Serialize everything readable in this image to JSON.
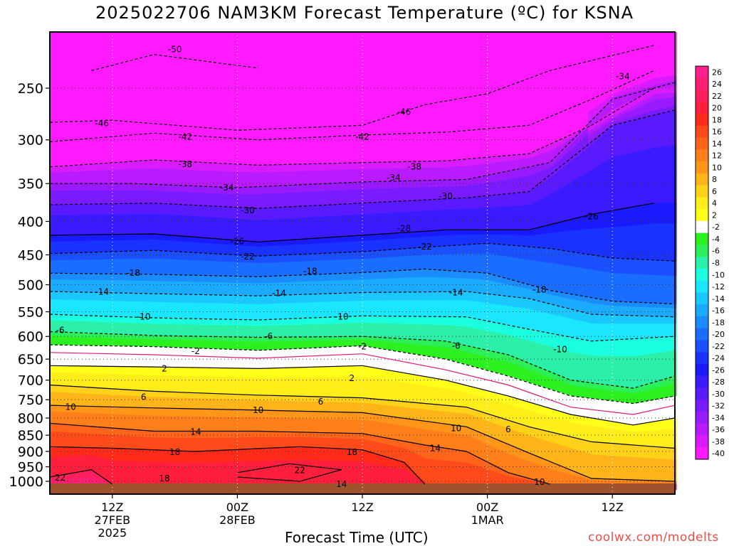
{
  "title": "2025022706 NAM3KM Forecast Temperature (ºC) for KSNA",
  "xlabel": "Forecast Time (UTC)",
  "credit": "coolwx.com/modelts",
  "chart_data": {
    "type": "heatmap",
    "title": "2025022706 NAM3KM Forecast Temperature (ºC) for KSNA",
    "xlabel": "Forecast Time (UTC)",
    "ylabel": "",
    "y_scale": "log-pressure",
    "ylim": [
      1030,
      200
    ],
    "xlim_hours": [
      6,
      66
    ],
    "x_ticks": [
      {
        "hour": 12,
        "lines": [
          "12Z",
          "27FEB",
          "2025"
        ]
      },
      {
        "hour": 24,
        "lines": [
          "00Z",
          "28FEB"
        ]
      },
      {
        "hour": 36,
        "lines": [
          "12Z"
        ]
      },
      {
        "hour": 48,
        "lines": [
          "00Z",
          "1MAR"
        ]
      },
      {
        "hour": 60,
        "lines": [
          "12Z"
        ]
      }
    ],
    "y_ticks": [
      250,
      300,
      350,
      400,
      450,
      500,
      550,
      600,
      650,
      700,
      750,
      800,
      850,
      900,
      950,
      1000
    ],
    "colorbar_labels": [
      26,
      24,
      22,
      20,
      18,
      16,
      14,
      12,
      10,
      8,
      6,
      4,
      2,
      -2,
      -4,
      -6,
      -8,
      -10,
      -12,
      -14,
      -16,
      -18,
      -20,
      -22,
      -24,
      -26,
      -28,
      -30,
      -32,
      -34,
      -36,
      -38,
      -40
    ],
    "colorbar_colors": [
      "#ff1f8e",
      "#ff1f72",
      "#ff1f5a",
      "#ff1f3c",
      "#ff2a1a",
      "#ff4a1a",
      "#ff651a",
      "#ff7f1a",
      "#ff961a",
      "#ffb41a",
      "#ffd21a",
      "#ffee1a",
      "#ffff1a",
      "#ffffff",
      "#2cf020",
      "#2cf05a",
      "#2cf0a8",
      "#1affe0",
      "#1ae6ff",
      "#1ac8ff",
      "#1aaaff",
      "#1a8cff",
      "#1a6eff",
      "#1a50ff",
      "#1a32ff",
      "#1a1aff",
      "#3a1aff",
      "#5a1aff",
      "#7a1aff",
      "#9a1aff",
      "#ba1aff",
      "#da1aff",
      "#ff1aff"
    ],
    "surface_color": "#a0522d",
    "isotherms": [
      {
        "temp": -50,
        "style": "dashed",
        "points": [
          [
            10,
            235
          ],
          [
            16,
            222
          ],
          [
            26,
            233
          ]
        ]
      },
      {
        "temp": -46,
        "style": "dashed",
        "points": [
          [
            6,
            282
          ],
          [
            12,
            280
          ],
          [
            24,
            290
          ],
          [
            36,
            285
          ],
          [
            42,
            265
          ],
          [
            48,
            255
          ],
          [
            54,
            235
          ],
          [
            64,
            215
          ]
        ]
      },
      {
        "temp": -42,
        "style": "dashed",
        "points": [
          [
            6,
            302
          ],
          [
            16,
            293
          ],
          [
            26,
            300
          ],
          [
            36,
            295
          ],
          [
            44,
            292
          ],
          [
            52,
            285
          ],
          [
            58,
            260
          ],
          [
            64,
            235
          ]
        ]
      },
      {
        "temp": -38,
        "style": "dashed",
        "points": [
          [
            6,
            330
          ],
          [
            16,
            322
          ],
          [
            26,
            328
          ],
          [
            36,
            325
          ],
          [
            44,
            323
          ],
          [
            52,
            315
          ],
          [
            58,
            285
          ],
          [
            64,
            250
          ]
        ]
      },
      {
        "temp": -34,
        "style": "dashed",
        "points": [
          [
            6,
            350
          ],
          [
            14,
            350
          ],
          [
            24,
            355
          ],
          [
            36,
            348
          ],
          [
            46,
            345
          ],
          [
            54,
            325
          ],
          [
            60,
            260
          ],
          [
            66,
            245
          ]
        ]
      },
      {
        "temp": -30,
        "style": "dashed",
        "points": [
          [
            6,
            377
          ],
          [
            16,
            375
          ],
          [
            26,
            382
          ],
          [
            36,
            375
          ],
          [
            46,
            368
          ],
          [
            52,
            360
          ],
          [
            60,
            285
          ],
          [
            66,
            270
          ]
        ]
      },
      {
        "temp": -26,
        "style": "solid",
        "points": [
          [
            6,
            420
          ],
          [
            16,
            418
          ],
          [
            26,
            430
          ],
          [
            36,
            420
          ],
          [
            44,
            412
          ],
          [
            52,
            412
          ],
          [
            58,
            390
          ],
          [
            64,
            375
          ]
        ]
      },
      {
        "temp": -22,
        "style": "dashed",
        "points": [
          [
            6,
            448
          ],
          [
            16,
            443
          ],
          [
            26,
            452
          ],
          [
            36,
            445
          ],
          [
            42,
            438
          ],
          [
            48,
            432
          ],
          [
            54,
            440
          ],
          [
            60,
            455
          ],
          [
            66,
            460
          ]
        ]
      },
      {
        "temp": -18,
        "style": "dashed",
        "points": [
          [
            6,
            480
          ],
          [
            16,
            482
          ],
          [
            26,
            486
          ],
          [
            36,
            479
          ],
          [
            42,
            473
          ],
          [
            48,
            480
          ],
          [
            54,
            510
          ],
          [
            60,
            530
          ],
          [
            66,
            535
          ]
        ]
      },
      {
        "temp": -14,
        "style": "dashed",
        "points": [
          [
            6,
            512
          ],
          [
            16,
            516
          ],
          [
            26,
            520
          ],
          [
            36,
            514
          ],
          [
            46,
            512
          ],
          [
            52,
            525
          ],
          [
            58,
            555
          ],
          [
            66,
            560
          ]
        ]
      },
      {
        "temp": -10,
        "style": "dashed",
        "points": [
          [
            6,
            555
          ],
          [
            16,
            562
          ],
          [
            26,
            566
          ],
          [
            36,
            558
          ],
          [
            46,
            560
          ],
          [
            52,
            585
          ],
          [
            58,
            610
          ],
          [
            66,
            600
          ]
        ]
      },
      {
        "temp": -6,
        "style": "dashed",
        "points": [
          [
            6,
            590
          ],
          [
            16,
            598
          ],
          [
            26,
            602
          ],
          [
            36,
            600
          ],
          [
            44,
            610
          ],
          [
            50,
            640
          ],
          [
            56,
            700
          ],
          [
            62,
            720
          ],
          [
            66,
            690
          ]
        ]
      },
      {
        "temp": -2,
        "style": "dashed",
        "points": [
          [
            6,
            618
          ],
          [
            16,
            622
          ],
          [
            26,
            630
          ],
          [
            36,
            620
          ],
          [
            44,
            650
          ],
          [
            50,
            690
          ],
          [
            56,
            740
          ],
          [
            62,
            760
          ],
          [
            66,
            740
          ]
        ]
      },
      {
        "temp": 0,
        "style": "magenta",
        "points": [
          [
            6,
            635
          ],
          [
            16,
            640
          ],
          [
            26,
            648
          ],
          [
            36,
            638
          ],
          [
            44,
            675
          ],
          [
            50,
            712
          ],
          [
            56,
            770
          ],
          [
            62,
            790
          ],
          [
            66,
            765
          ]
        ]
      },
      {
        "temp": 2,
        "style": "solid",
        "points": [
          [
            6,
            665
          ],
          [
            16,
            668
          ],
          [
            26,
            672
          ],
          [
            36,
            665
          ],
          [
            44,
            700
          ],
          [
            50,
            740
          ],
          [
            56,
            790
          ],
          [
            62,
            820
          ],
          [
            66,
            800
          ]
        ]
      },
      {
        "temp": 6,
        "style": "solid",
        "points": [
          [
            6,
            712
          ],
          [
            16,
            728
          ],
          [
            26,
            738
          ],
          [
            36,
            745
          ],
          [
            46,
            770
          ],
          [
            52,
            825
          ],
          [
            58,
            870
          ],
          [
            66,
            890
          ]
        ]
      },
      {
        "temp": 10,
        "style": "solid",
        "points": [
          [
            6,
            765
          ],
          [
            16,
            772
          ],
          [
            26,
            778
          ],
          [
            36,
            785
          ],
          [
            46,
            825
          ],
          [
            52,
            905
          ],
          [
            58,
            990
          ],
          [
            66,
            1000
          ]
        ]
      },
      {
        "temp": 14,
        "style": "solid",
        "points": [
          [
            6,
            815
          ],
          [
            16,
            838
          ],
          [
            26,
            838
          ],
          [
            36,
            845
          ],
          [
            42,
            880
          ],
          [
            46,
            900
          ],
          [
            50,
            970
          ],
          [
            54,
            1010
          ]
        ]
      },
      {
        "temp": 18,
        "style": "solid",
        "points": [
          [
            6,
            885
          ],
          [
            12,
            890
          ],
          [
            20,
            900
          ],
          [
            30,
            885
          ],
          [
            36,
            895
          ],
          [
            40,
            935
          ],
          [
            42,
            1010
          ]
        ]
      },
      {
        "temp": 22,
        "style": "solid",
        "points": [
          [
            6,
            985
          ],
          [
            10,
            960
          ],
          [
            12,
            1010
          ]
        ]
      },
      {
        "temp": 22,
        "style": "solid",
        "points": [
          [
            24,
            970
          ],
          [
            29,
            940
          ],
          [
            34,
            960
          ],
          [
            30,
            1000
          ],
          [
            24,
            985
          ]
        ]
      }
    ],
    "contour_labels": [
      {
        "text": "-50",
        "hour": 18,
        "p": 218
      },
      {
        "text": "-46",
        "hour": 11,
        "p": 283
      },
      {
        "text": "-46",
        "hour": 40,
        "p": 272
      },
      {
        "text": "-42",
        "hour": 19,
        "p": 297
      },
      {
        "text": "-42",
        "hour": 36,
        "p": 297
      },
      {
        "text": "-38",
        "hour": 19,
        "p": 327
      },
      {
        "text": "-38",
        "hour": 41,
        "p": 330
      },
      {
        "text": "-34",
        "hour": 23,
        "p": 355
      },
      {
        "text": "-34",
        "hour": 39,
        "p": 343
      },
      {
        "text": "-34",
        "hour": 61,
        "p": 240
      },
      {
        "text": "-30",
        "hour": 25,
        "p": 385
      },
      {
        "text": "-30",
        "hour": 44,
        "p": 366
      },
      {
        "text": "-28",
        "hour": 40,
        "p": 410
      },
      {
        "text": "-26",
        "hour": 24,
        "p": 429
      },
      {
        "text": "-26",
        "hour": 58,
        "p": 393
      },
      {
        "text": "-22",
        "hour": 25,
        "p": 453
      },
      {
        "text": "-22",
        "hour": 42,
        "p": 437
      },
      {
        "text": "-18",
        "hour": 14,
        "p": 480
      },
      {
        "text": "-18",
        "hour": 31,
        "p": 477
      },
      {
        "text": "-18",
        "hour": 53,
        "p": 509
      },
      {
        "text": "-14",
        "hour": 11,
        "p": 513
      },
      {
        "text": "-14",
        "hour": 28,
        "p": 515
      },
      {
        "text": "-14",
        "hour": 45,
        "p": 514
      },
      {
        "text": "-10",
        "hour": 15,
        "p": 560
      },
      {
        "text": "-10",
        "hour": 34,
        "p": 560
      },
      {
        "text": "-10",
        "hour": 55,
        "p": 628
      },
      {
        "text": "-6",
        "hour": 7,
        "p": 587
      },
      {
        "text": "-6",
        "hour": 27,
        "p": 600
      },
      {
        "text": "-6",
        "hour": 45,
        "p": 620
      },
      {
        "text": "-2",
        "hour": 20,
        "p": 632
      },
      {
        "text": "-2",
        "hour": 36,
        "p": 622
      },
      {
        "text": "2",
        "hour": 17,
        "p": 672
      },
      {
        "text": "2",
        "hour": 35,
        "p": 695
      },
      {
        "text": "6",
        "hour": 15,
        "p": 743
      },
      {
        "text": "6",
        "hour": 32,
        "p": 755
      },
      {
        "text": "6",
        "hour": 50,
        "p": 833
      },
      {
        "text": "10",
        "hour": 8,
        "p": 770
      },
      {
        "text": "10",
        "hour": 26,
        "p": 778
      },
      {
        "text": "10",
        "hour": 45,
        "p": 830
      },
      {
        "text": "10",
        "hour": 53,
        "p": 1003
      },
      {
        "text": "14",
        "hour": 20,
        "p": 840
      },
      {
        "text": "14",
        "hour": 43,
        "p": 890
      },
      {
        "text": "14",
        "hour": 34,
        "p": 1010
      },
      {
        "text": "18",
        "hour": 18,
        "p": 902
      },
      {
        "text": "18",
        "hour": 35,
        "p": 902
      },
      {
        "text": "18",
        "hour": 17,
        "p": 990
      },
      {
        "text": "22",
        "hour": 7,
        "p": 987
      },
      {
        "text": "22",
        "hour": 30,
        "p": 962
      }
    ]
  }
}
